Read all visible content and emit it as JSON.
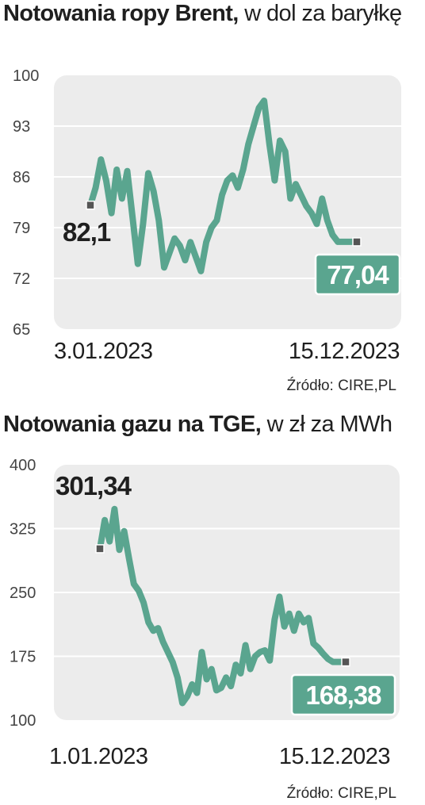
{
  "colors": {
    "series": "#5aa58f",
    "badge": "#5aa58f",
    "plot_bg": "#ececec",
    "text": "#1f1f1f",
    "end_marker": "#555555"
  },
  "chart_data": [
    {
      "type": "line",
      "title_bold": "Notowania ropy Brent,",
      "title_rest": " w dol za baryłkę",
      "yticks": [
        "100",
        "93",
        "86",
        "79",
        "72",
        "65"
      ],
      "ylim": [
        65,
        100
      ],
      "x_tick_labels": [
        "3.01.2023",
        "15.12.2023"
      ],
      "start_label": "82,1",
      "end_label": "77,04",
      "source": "Źródło: CIRE,PL",
      "grid": true,
      "x": [
        0,
        2,
        4,
        6,
        8,
        10,
        12,
        14,
        16,
        18,
        20,
        22,
        24,
        26,
        28,
        30,
        32,
        34,
        36,
        38,
        40,
        42,
        44,
        46,
        48,
        50,
        52,
        54,
        56,
        58,
        60,
        62,
        64,
        66,
        68,
        70,
        72,
        74,
        76,
        78,
        80,
        82,
        84,
        86,
        88,
        90,
        92,
        94,
        96,
        98,
        100
      ],
      "values": [
        82.1,
        84.5,
        88.4,
        85.5,
        81.0,
        87.0,
        83.0,
        86.8,
        80.5,
        74.0,
        79.5,
        86.5,
        84.0,
        80.0,
        73.5,
        75.5,
        77.5,
        76.5,
        74.5,
        77.0,
        75.0,
        73.0,
        77.0,
        79.0,
        80.0,
        83.5,
        85.5,
        86.2,
        84.5,
        87.0,
        90.5,
        93.0,
        95.5,
        96.5,
        90.5,
        85.5,
        91.0,
        89.5,
        83.0,
        85.0,
        83.5,
        82.0,
        81.0,
        79.5,
        83.0,
        80.0,
        78.0,
        77.04,
        77.04,
        77.04,
        77.04
      ]
    },
    {
      "type": "line",
      "title_bold": "Notowania gazu na TGE,",
      "title_rest": " w zł za MWh",
      "yticks": [
        "400",
        "325",
        "250",
        "175",
        "100"
      ],
      "ylim": [
        100,
        400
      ],
      "x_tick_labels": [
        "1.01.2023",
        "15.12.2023"
      ],
      "start_label": "301,34",
      "end_label": "168,38",
      "source": "Źródło: CIRE,PL",
      "grid": true,
      "x": [
        0,
        2,
        4,
        6,
        8,
        10,
        12,
        14,
        16,
        18,
        20,
        22,
        24,
        26,
        28,
        30,
        32,
        34,
        36,
        38,
        40,
        42,
        44,
        46,
        48,
        50,
        52,
        54,
        56,
        58,
        60,
        62,
        64,
        66,
        68,
        70,
        72,
        74,
        76,
        78,
        80,
        82,
        84,
        86,
        88,
        90,
        92,
        94,
        96,
        98,
        100
      ],
      "values": [
        301.34,
        335,
        310,
        348,
        300,
        322,
        290,
        260,
        252,
        238,
        215,
        205,
        208,
        192,
        180,
        168,
        150,
        120,
        128,
        142,
        132,
        180,
        148,
        160,
        135,
        138,
        150,
        140,
        165,
        155,
        188,
        160,
        175,
        180,
        182,
        170,
        218,
        245,
        210,
        225,
        205,
        225,
        215,
        220,
        190,
        185,
        178,
        172,
        168.38,
        168.38,
        168.38
      ]
    }
  ]
}
